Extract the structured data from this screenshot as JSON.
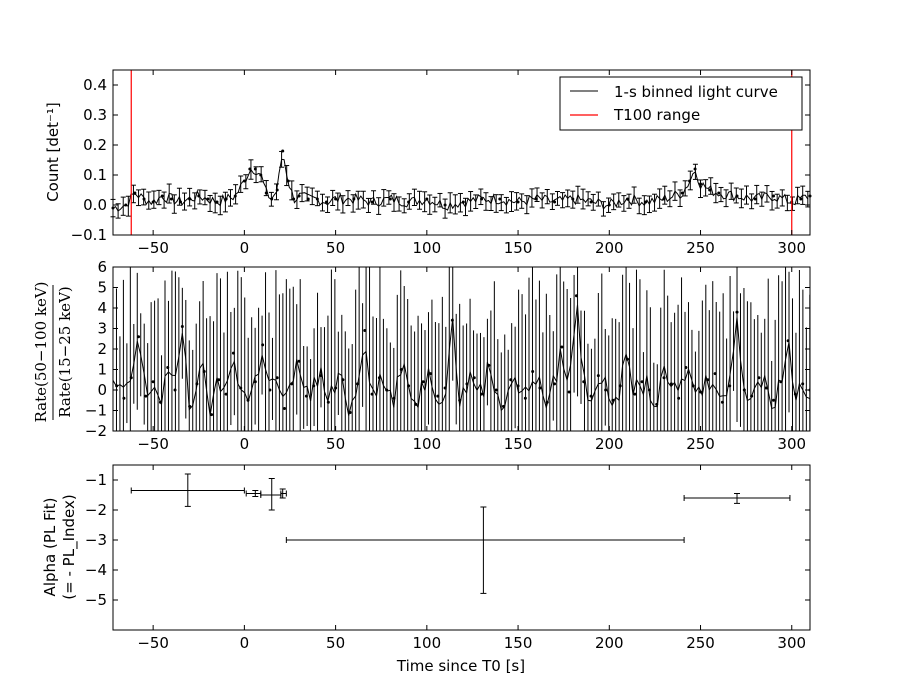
{
  "chart_data": [
    {
      "type": "line",
      "panel": "light-curve",
      "ylabel": "Count [det⁻¹]",
      "xlim": [
        -72,
        310
      ],
      "ylim": [
        -0.1,
        0.45
      ],
      "xticks": [
        "−50",
        "0",
        "50",
        "100",
        "150",
        "200",
        "250",
        "300"
      ],
      "yticks": [
        "−0.1",
        "0.0",
        "0.1",
        "0.2",
        "0.3",
        "0.4"
      ],
      "legend": {
        "position": "top-right",
        "entries": [
          {
            "label": "1-s binned light curve",
            "color": "#000000"
          },
          {
            "label": "T100 range",
            "color": "#ff0000"
          }
        ]
      },
      "t100_lines": [
        -62,
        300
      ],
      "series": [
        {
          "x": [
            -72,
            -65,
            -60,
            -55,
            -50,
            -45,
            -40,
            -35,
            -30,
            -25,
            -20,
            -15,
            -10,
            -5,
            0,
            3,
            6,
            9,
            12,
            15,
            18,
            21,
            24,
            27,
            30,
            35,
            40,
            45,
            50,
            60,
            70,
            80,
            90,
            100,
            110,
            120,
            130,
            140,
            150,
            160,
            170,
            180,
            190,
            200,
            210,
            220,
            230,
            240,
            244,
            247,
            250,
            255,
            260,
            270,
            280,
            290,
            300,
            305,
            310
          ],
          "y": [
            -0.01,
            0.0,
            0.04,
            0.02,
            0.01,
            0.03,
            0.02,
            0.01,
            0.02,
            0.03,
            0.02,
            0.01,
            0.02,
            0.03,
            0.08,
            0.12,
            0.12,
            0.1,
            0.04,
            0.02,
            0.05,
            0.18,
            0.08,
            0.02,
            0.03,
            0.02,
            0.02,
            0.01,
            0.02,
            0.02,
            0.01,
            0.02,
            0.01,
            0.02,
            0.0,
            0.01,
            0.02,
            0.02,
            0.01,
            0.02,
            0.01,
            0.02,
            0.01,
            0.0,
            0.02,
            0.01,
            0.02,
            0.04,
            0.08,
            0.12,
            0.07,
            0.05,
            0.04,
            0.03,
            0.02,
            0.03,
            0.01,
            0.02,
            0.03
          ],
          "err": 0.028
        }
      ]
    },
    {
      "type": "line",
      "panel": "hardness-ratio",
      "ylabel_numerator": "Rate(50−100 keV)",
      "ylabel_denominator": "Rate(15−25 keV)",
      "xlim": [
        -72,
        310
      ],
      "ylim": [
        -2,
        6
      ],
      "xticks": [
        "−50",
        "0",
        "50",
        "100",
        "150",
        "200",
        "250",
        "300"
      ],
      "yticks": [
        "−2",
        "−1",
        "0",
        "1",
        "2",
        "3",
        "4",
        "5",
        "6"
      ],
      "series": [
        {
          "x": [
            -70,
            -66,
            -62,
            -58,
            -54,
            -50,
            -46,
            -42,
            -38,
            -34,
            -30,
            -26,
            -22,
            -18,
            -14,
            -10,
            -6,
            -2,
            2,
            6,
            10,
            14,
            18,
            22,
            26,
            30,
            34,
            38,
            42,
            46,
            50,
            54,
            58,
            62,
            66,
            70,
            74,
            78,
            82,
            86,
            90,
            94,
            98,
            102,
            106,
            110,
            114,
            118,
            122,
            126,
            130,
            134,
            138,
            142,
            146,
            150,
            154,
            158,
            162,
            166,
            170,
            174,
            178,
            182,
            186,
            190,
            194,
            198,
            202,
            206,
            210,
            214,
            218,
            222,
            226,
            230,
            234,
            238,
            242,
            246,
            250,
            254,
            258,
            262,
            266,
            270,
            274,
            278,
            282,
            286,
            290,
            294,
            298,
            302,
            306,
            310
          ],
          "y": [
            0.2,
            -0.4,
            0.6,
            2.6,
            -0.3,
            0.4,
            -0.6,
            1.1,
            0.0,
            3.1,
            -0.8,
            0.3,
            0.9,
            -1.2,
            0.5,
            -0.2,
            1.8,
            0.1,
            -0.5,
            0.4,
            2.2,
            0.0,
            0.6,
            -0.9,
            0.3,
            1.4,
            -0.3,
            0.2,
            0.7,
            -0.6,
            0.1,
            0.5,
            -1.1,
            0.3,
            2.9,
            -0.2,
            0.6,
            0.0,
            -0.4,
            1.0,
            0.2,
            -0.7,
            0.4,
            0.8,
            -0.3,
            0.1,
            3.4,
            -0.5,
            0.3,
            0.6,
            -0.2,
            1.2,
            0.0,
            -0.8,
            0.5,
            0.2,
            -0.4,
            0.9,
            0.1,
            -0.6,
            0.3,
            2.1,
            -0.1,
            4.6,
            0.4,
            -0.3,
            0.7,
            0.0,
            -0.5,
            0.2,
            1.5,
            -0.2,
            0.4,
            0.0,
            -0.7,
            0.6,
            0.3,
            -0.4,
            1.1,
            0.2,
            -0.1,
            0.5,
            0.8,
            -0.6,
            0.2,
            3.8,
            0.0,
            -0.3,
            0.6,
            0.1,
            -0.5,
            0.4,
            2.4,
            -0.2,
            0.3,
            0.0
          ],
          "err": 3.2
        }
      ]
    },
    {
      "type": "scatter",
      "panel": "alpha",
      "ylabel_line1": "Alpha (PL Fit)",
      "ylabel_line2": "(= - PL_Index)",
      "xlabel": "Time since T0 [s]",
      "xlim": [
        -72,
        310
      ],
      "ylim": [
        -6,
        -0.5
      ],
      "xticks": [
        "−50",
        "0",
        "50",
        "100",
        "150",
        "200",
        "250",
        "300"
      ],
      "yticks": [
        "−5",
        "−4",
        "−3",
        "−2",
        "−1"
      ],
      "points": [
        {
          "x": -31,
          "xlo": -62,
          "xhi": 0,
          "y": -1.35,
          "ylo": -1.88,
          "yhi": -0.8
        },
        {
          "x": 6,
          "xlo": 1,
          "xhi": 9,
          "y": -1.45,
          "ylo": -1.55,
          "yhi": -1.35
        },
        {
          "x": 15,
          "xlo": 9,
          "xhi": 20,
          "y": -1.5,
          "ylo": -2.0,
          "yhi": -0.95
        },
        {
          "x": 21,
          "xlo": 20,
          "xhi": 23,
          "y": -1.45,
          "ylo": -1.6,
          "yhi": -1.3
        },
        {
          "x": 131,
          "xlo": 23,
          "xhi": 241,
          "y": -3.0,
          "ylo": -4.78,
          "yhi": -1.9
        },
        {
          "x": 270,
          "xlo": 241,
          "xhi": 299,
          "y": -1.6,
          "ylo": -1.78,
          "yhi": -1.45
        }
      ]
    }
  ]
}
